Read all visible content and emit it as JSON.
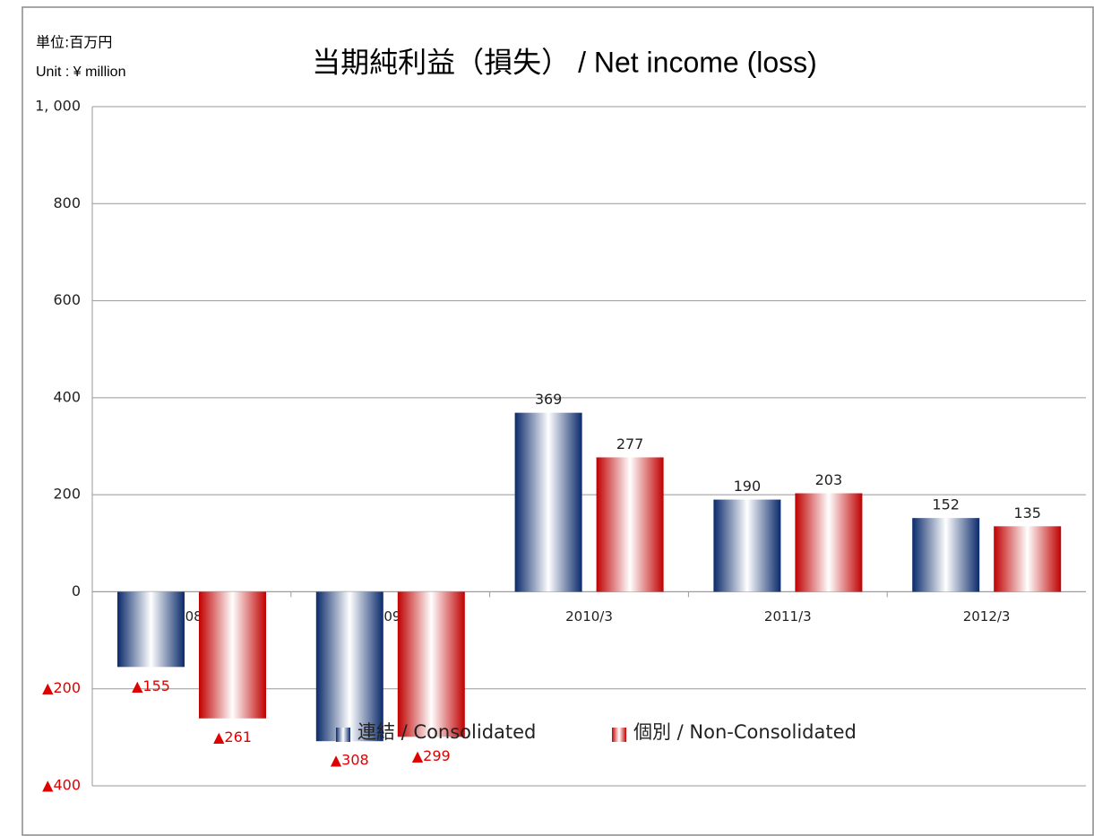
{
  "chart_data": {
    "type": "bar",
    "title": "当期純利益（損失） / Net income (loss)",
    "unit_labels": [
      "単位:百万円",
      "Unit : ¥ million"
    ],
    "categories": [
      "2008/3",
      "2009/3",
      "2010/3",
      "2011/3",
      "2012/3"
    ],
    "series": [
      {
        "name": "連結 / Consolidated",
        "color": "#0a2a6b",
        "values": [
          -155,
          -308,
          369,
          190,
          152
        ],
        "value_labels": [
          "▲155",
          "▲308",
          "369",
          "190",
          "152"
        ]
      },
      {
        "name": "個別 / Non-Consolidated",
        "color": "#c00000",
        "values": [
          -261,
          -299,
          277,
          203,
          135
        ],
        "value_labels": [
          "▲261",
          "▲299",
          "277",
          "203",
          "135"
        ]
      }
    ],
    "ylim": [
      -400,
      1000
    ],
    "yticks": [
      {
        "value": -400,
        "label": "▲400"
      },
      {
        "value": -200,
        "label": "▲200"
      },
      0,
      200,
      400,
      600,
      800,
      {
        "value": 1000,
        "label": "1, 000"
      }
    ],
    "grid": true,
    "legend": "bottom"
  }
}
